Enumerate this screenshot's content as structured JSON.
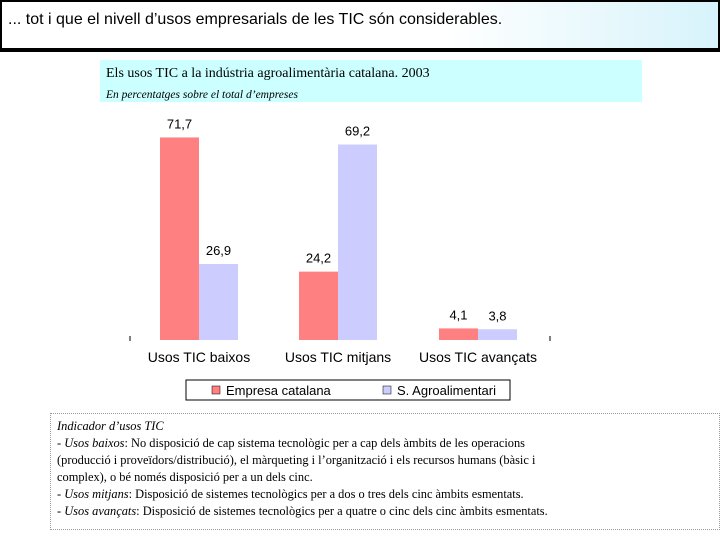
{
  "header": {
    "text": "... tot i que el nivell d’usos empresarials de les TIC són considerables."
  },
  "chart_data": {
    "type": "bar",
    "title": "Els usos TIC a la indústria agroalimentària catalana. 2003",
    "subtitle": "En percentatges sobre el total d’empreses",
    "categories": [
      "Usos TIC baixos",
      "Usos TIC mitjans",
      "Usos TIC avançats"
    ],
    "series": [
      {
        "name": "Empresa catalana",
        "values": [
          71.7,
          24.2,
          4.1
        ],
        "labels": [
          "71,7",
          "24,2",
          "4,1"
        ],
        "color": "#ff8080"
      },
      {
        "name": "S. Agroalimentari",
        "values": [
          26.9,
          69.2,
          3.8
        ],
        "labels": [
          "26,9",
          "69,2",
          "3,8"
        ],
        "color": "#ccccff"
      }
    ],
    "ylim": [
      0,
      80
    ],
    "grid": false,
    "legend_position": "bottom"
  },
  "note": {
    "title": "Indicador d’usos TIC",
    "low_term": "Usos baixos",
    "low_text_1": ": No disposició de cap sistema tecnològic per a cap dels àmbits de les operacions",
    "low_text_2": "(producció i proveïdors/distribució), el màrqueting i l’organització i els recursos humans (bàsic i",
    "low_text_3": "complex), o bé només disposició per a un dels cinc.",
    "mid_term": "Usos mitjans",
    "mid_text": ": Disposició de sistemes tecnològics per a dos o tres dels cinc àmbits esmentats.",
    "adv_term": "Usos avançats",
    "adv_text": ": Disposició de sistemes tecnològics per a quatre o cinc dels cinc àmbits esmentats.",
    "dash": "- "
  }
}
